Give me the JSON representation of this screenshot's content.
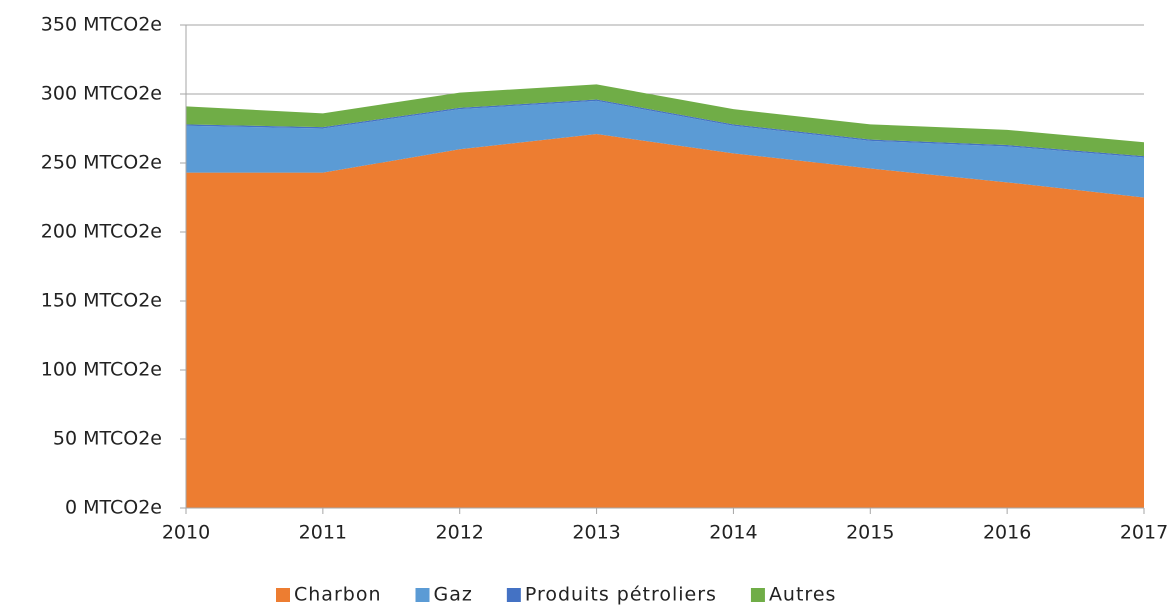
{
  "chart_data": {
    "type": "stacked_area",
    "x": [
      2010,
      2011,
      2012,
      2013,
      2014,
      2015,
      2016,
      2017
    ],
    "xlim": [
      2010,
      2017
    ],
    "xticks": [
      2010,
      2011,
      2012,
      2013,
      2014,
      2015,
      2016,
      2017
    ],
    "ylim": [
      0,
      350
    ],
    "yticks": [
      {
        "value": 0,
        "label": "0 MTCO2e"
      },
      {
        "value": 50,
        "label": "50 MTCO2e"
      },
      {
        "value": 100,
        "label": "100 MTCO2e"
      },
      {
        "value": 150,
        "label": "150 MTCO2e"
      },
      {
        "value": 200,
        "label": "200 MTCO2e"
      },
      {
        "value": 250,
        "label": "250 MTCO2e"
      },
      {
        "value": 300,
        "label": "300 MTCO2e"
      },
      {
        "value": 350,
        "label": "350 MTCO2e"
      }
    ],
    "grid": true,
    "legend": "bottom",
    "series": [
      {
        "name": "Charbon",
        "color": "#ED7D31",
        "values": [
          243,
          243,
          260,
          271,
          257,
          246,
          236,
          225
        ]
      },
      {
        "name": "Gaz",
        "color": "#5B9BD5",
        "values": [
          34,
          32,
          29,
          24,
          20,
          20,
          26,
          29
        ]
      },
      {
        "name": "Produits pétroliers",
        "color": "#4472C4",
        "values": [
          1,
          1,
          1,
          1,
          1,
          1,
          1,
          1
        ]
      },
      {
        "name": "Autres",
        "color": "#70AD47",
        "values": [
          13,
          10,
          11,
          11,
          11,
          11,
          11,
          10
        ]
      }
    ]
  }
}
